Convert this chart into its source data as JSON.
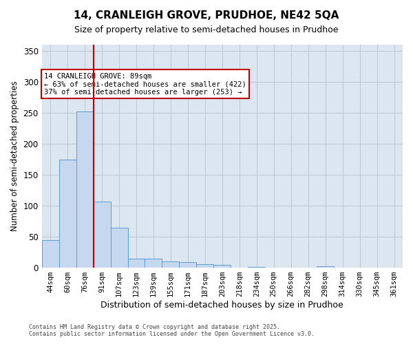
{
  "title_line1": "14, CRANLEIGH GROVE, PRUDHOE, NE42 5QA",
  "title_line2": "Size of property relative to semi-detached houses in Prudhoe",
  "xlabel": "Distribution of semi-detached houses by size in Prudhoe",
  "ylabel": "Number of semi-detached properties",
  "categories": [
    "44sqm",
    "60sqm",
    "76sqm",
    "91sqm",
    "107sqm",
    "123sqm",
    "139sqm",
    "155sqm",
    "171sqm",
    "187sqm",
    "203sqm",
    "218sqm",
    "234sqm",
    "250sqm",
    "266sqm",
    "282sqm",
    "298sqm",
    "314sqm",
    "330sqm",
    "345sqm",
    "361sqm"
  ],
  "values": [
    44,
    175,
    252,
    107,
    65,
    15,
    15,
    10,
    9,
    6,
    4,
    0,
    1,
    0,
    0,
    0,
    2,
    0,
    0,
    0,
    0
  ],
  "bar_color": "#c5d8f0",
  "bar_edge_color": "#5b9bd5",
  "grid_color": "#c0c8d8",
  "background_color": "#dce6f1",
  "annotation_box_color": "#c00000",
  "vline_color": "#c00000",
  "vline_x": 2.5,
  "annotation_text_line1": "14 CRANLEIGH GROVE: 89sqm",
  "annotation_text_line2": "← 63% of semi-detached houses are smaller (422)",
  "annotation_text_line3": "37% of semi-detached houses are larger (253) →",
  "ylim": [
    0,
    360
  ],
  "yticks": [
    0,
    50,
    100,
    150,
    200,
    250,
    300,
    350
  ],
  "footer_line1": "Contains HM Land Registry data © Crown copyright and database right 2025.",
  "footer_line2": "Contains public sector information licensed under the Open Government Licence v3.0."
}
